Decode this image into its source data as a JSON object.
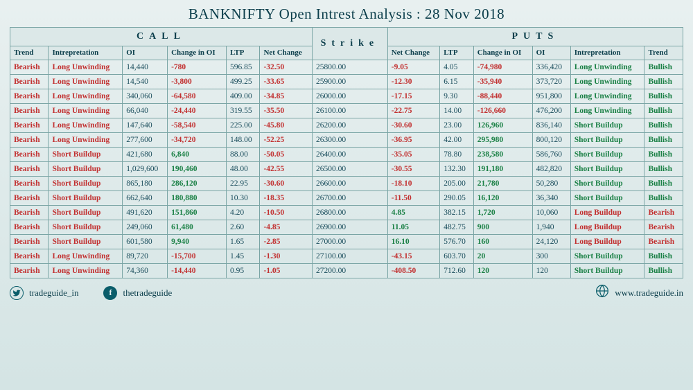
{
  "title": "BANKNIFTY Open Intrest Analysis : 28 Nov 2018",
  "sections": {
    "call": "CALL",
    "puts": "PUTS"
  },
  "headers": {
    "trend": "Trend",
    "interp": "Intrepretation",
    "oi": "OI",
    "chgoi": "Change in OI",
    "ltp": "LTP",
    "netchg": "Net Change",
    "strike": "Strike"
  },
  "colors": {
    "red": "#c23030",
    "green": "#1a8045",
    "text": "#1a4d5c",
    "border": "#7aa5a5",
    "bg_top": "#e8f0f0",
    "bg_bot": "#d4e4e4"
  },
  "rows": [
    {
      "c": {
        "trend": "Bearish",
        "tc": "red",
        "interp": "Long Unwinding",
        "ic": "red",
        "oi": "14,440",
        "chgoi": "-780",
        "cc": "red",
        "ltp": "596.85",
        "net": "-32.50",
        "nc": "red"
      },
      "strike": "25800.00",
      "p": {
        "net": "-9.05",
        "nc": "red",
        "ltp": "4.05",
        "chgoi": "-74,980",
        "cc": "red",
        "oi": "336,420",
        "interp": "Long Unwinding",
        "ic": "green",
        "trend": "Bullish",
        "tc": "green"
      }
    },
    {
      "c": {
        "trend": "Bearish",
        "tc": "red",
        "interp": "Long Unwinding",
        "ic": "red",
        "oi": "14,540",
        "chgoi": "-3,800",
        "cc": "red",
        "ltp": "499.25",
        "net": "-33.65",
        "nc": "red"
      },
      "strike": "25900.00",
      "p": {
        "net": "-12.30",
        "nc": "red",
        "ltp": "6.15",
        "chgoi": "-35,940",
        "cc": "red",
        "oi": "373,720",
        "interp": "Long Unwinding",
        "ic": "green",
        "trend": "Bullish",
        "tc": "green"
      }
    },
    {
      "c": {
        "trend": "Bearish",
        "tc": "red",
        "interp": "Long Unwinding",
        "ic": "red",
        "oi": "340,060",
        "chgoi": "-64,580",
        "cc": "red",
        "ltp": "409.00",
        "net": "-34.85",
        "nc": "red"
      },
      "strike": "26000.00",
      "p": {
        "net": "-17.15",
        "nc": "red",
        "ltp": "9.30",
        "chgoi": "-88,440",
        "cc": "red",
        "oi": "951,800",
        "interp": "Long Unwinding",
        "ic": "green",
        "trend": "Bullish",
        "tc": "green"
      }
    },
    {
      "c": {
        "trend": "Bearish",
        "tc": "red",
        "interp": "Long Unwinding",
        "ic": "red",
        "oi": "66,040",
        "chgoi": "-24,440",
        "cc": "red",
        "ltp": "319.55",
        "net": "-35.50",
        "nc": "red"
      },
      "strike": "26100.00",
      "p": {
        "net": "-22.75",
        "nc": "red",
        "ltp": "14.00",
        "chgoi": "-126,660",
        "cc": "red",
        "oi": "476,200",
        "interp": "Long Unwinding",
        "ic": "green",
        "trend": "Bullish",
        "tc": "green"
      }
    },
    {
      "c": {
        "trend": "Bearish",
        "tc": "red",
        "interp": "Long Unwinding",
        "ic": "red",
        "oi": "147,640",
        "chgoi": "-58,540",
        "cc": "red",
        "ltp": "225.00",
        "net": "-45.80",
        "nc": "red"
      },
      "strike": "26200.00",
      "p": {
        "net": "-30.60",
        "nc": "red",
        "ltp": "23.00",
        "chgoi": "126,960",
        "cc": "green",
        "oi": "836,140",
        "interp": "Short Buildup",
        "ic": "green",
        "trend": "Bullish",
        "tc": "green"
      }
    },
    {
      "c": {
        "trend": "Bearish",
        "tc": "red",
        "interp": "Long Unwinding",
        "ic": "red",
        "oi": "277,600",
        "chgoi": "-34,720",
        "cc": "red",
        "ltp": "148.00",
        "net": "-52.25",
        "nc": "red"
      },
      "strike": "26300.00",
      "p": {
        "net": "-36.95",
        "nc": "red",
        "ltp": "42.00",
        "chgoi": "295,980",
        "cc": "green",
        "oi": "800,120",
        "interp": "Short Buildup",
        "ic": "green",
        "trend": "Bullish",
        "tc": "green"
      }
    },
    {
      "c": {
        "trend": "Bearish",
        "tc": "red",
        "interp": "Short Buildup",
        "ic": "red",
        "oi": "421,680",
        "chgoi": "6,840",
        "cc": "green",
        "ltp": "88.00",
        "net": "-50.05",
        "nc": "red"
      },
      "strike": "26400.00",
      "p": {
        "net": "-35.05",
        "nc": "red",
        "ltp": "78.80",
        "chgoi": "238,580",
        "cc": "green",
        "oi": "586,760",
        "interp": "Short Buildup",
        "ic": "green",
        "trend": "Bullish",
        "tc": "green"
      }
    },
    {
      "c": {
        "trend": "Bearish",
        "tc": "red",
        "interp": "Short Buildup",
        "ic": "red",
        "oi": "1,029,600",
        "chgoi": "190,460",
        "cc": "green",
        "ltp": "48.00",
        "net": "-42.55",
        "nc": "red"
      },
      "strike": "26500.00",
      "p": {
        "net": "-30.55",
        "nc": "red",
        "ltp": "132.30",
        "chgoi": "191,180",
        "cc": "green",
        "oi": "482,820",
        "interp": "Short Buildup",
        "ic": "green",
        "trend": "Bullish",
        "tc": "green"
      }
    },
    {
      "c": {
        "trend": "Bearish",
        "tc": "red",
        "interp": "Short Buildup",
        "ic": "red",
        "oi": "865,180",
        "chgoi": "286,120",
        "cc": "green",
        "ltp": "22.95",
        "net": "-30.60",
        "nc": "red"
      },
      "strike": "26600.00",
      "p": {
        "net": "-18.10",
        "nc": "red",
        "ltp": "205.00",
        "chgoi": "21,780",
        "cc": "green",
        "oi": "50,280",
        "interp": "Short Buildup",
        "ic": "green",
        "trend": "Bullish",
        "tc": "green"
      }
    },
    {
      "c": {
        "trend": "Bearish",
        "tc": "red",
        "interp": "Short Buildup",
        "ic": "red",
        "oi": "662,640",
        "chgoi": "180,880",
        "cc": "green",
        "ltp": "10.30",
        "net": "-18.35",
        "nc": "red"
      },
      "strike": "26700.00",
      "p": {
        "net": "-11.50",
        "nc": "red",
        "ltp": "290.05",
        "chgoi": "16,120",
        "cc": "green",
        "oi": "36,340",
        "interp": "Short Buildup",
        "ic": "green",
        "trend": "Bullish",
        "tc": "green"
      }
    },
    {
      "c": {
        "trend": "Bearish",
        "tc": "red",
        "interp": "Short Buildup",
        "ic": "red",
        "oi": "491,620",
        "chgoi": "151,860",
        "cc": "green",
        "ltp": "4.20",
        "net": "-10.50",
        "nc": "red"
      },
      "strike": "26800.00",
      "p": {
        "net": "4.85",
        "nc": "green",
        "ltp": "382.15",
        "chgoi": "1,720",
        "cc": "green",
        "oi": "10,060",
        "interp": "Long Buildup",
        "ic": "red",
        "trend": "Bearish",
        "tc": "red"
      }
    },
    {
      "c": {
        "trend": "Bearish",
        "tc": "red",
        "interp": "Short Buildup",
        "ic": "red",
        "oi": "249,060",
        "chgoi": "61,480",
        "cc": "green",
        "ltp": "2.60",
        "net": "-4.85",
        "nc": "red"
      },
      "strike": "26900.00",
      "p": {
        "net": "11.05",
        "nc": "green",
        "ltp": "482.75",
        "chgoi": "900",
        "cc": "green",
        "oi": "1,940",
        "interp": "Long Buildup",
        "ic": "red",
        "trend": "Bearish",
        "tc": "red"
      }
    },
    {
      "c": {
        "trend": "Bearish",
        "tc": "red",
        "interp": "Short Buildup",
        "ic": "red",
        "oi": "601,580",
        "chgoi": "9,940",
        "cc": "green",
        "ltp": "1.65",
        "net": "-2.85",
        "nc": "red"
      },
      "strike": "27000.00",
      "p": {
        "net": "16.10",
        "nc": "green",
        "ltp": "576.70",
        "chgoi": "160",
        "cc": "green",
        "oi": "24,120",
        "interp": "Long Buildup",
        "ic": "red",
        "trend": "Bearish",
        "tc": "red"
      }
    },
    {
      "c": {
        "trend": "Bearish",
        "tc": "red",
        "interp": "Long Unwinding",
        "ic": "red",
        "oi": "89,720",
        "chgoi": "-15,700",
        "cc": "red",
        "ltp": "1.45",
        "net": "-1.30",
        "nc": "red"
      },
      "strike": "27100.00",
      "p": {
        "net": "-43.15",
        "nc": "red",
        "ltp": "603.70",
        "chgoi": "20",
        "cc": "green",
        "oi": "300",
        "interp": "Short Buildup",
        "ic": "green",
        "trend": "Bullish",
        "tc": "green"
      }
    },
    {
      "c": {
        "trend": "Bearish",
        "tc": "red",
        "interp": "Long Unwinding",
        "ic": "red",
        "oi": "74,360",
        "chgoi": "-14,440",
        "cc": "red",
        "ltp": "0.95",
        "net": "-1.05",
        "nc": "red"
      },
      "strike": "27200.00",
      "p": {
        "net": "-408.50",
        "nc": "red",
        "ltp": "712.60",
        "chgoi": "120",
        "cc": "green",
        "oi": "120",
        "interp": "Short Buildup",
        "ic": "green",
        "trend": "Bullish",
        "tc": "green"
      }
    }
  ],
  "footer": {
    "twitter": "tradeguide_in",
    "facebook": "thetradeguide",
    "website": "www.tradeguide.in"
  }
}
